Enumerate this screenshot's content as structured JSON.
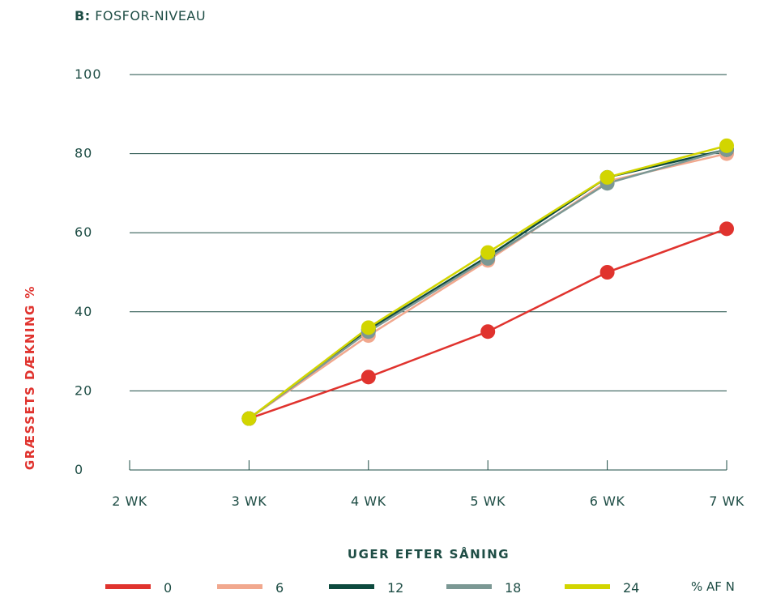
{
  "title_prefix": "B:",
  "title_text": "FOSFOR-NIVEAU",
  "legend_unit": "% AF N",
  "chart_data": {
    "type": "line",
    "x": [
      "2 WK",
      "3 WK",
      "4 WK",
      "5 WK",
      "6 WK",
      "7 WK"
    ],
    "xlabel": "UGER EFTER SÅNING",
    "ylabel": "GRÆSSETS DÆKNING %",
    "ylim": [
      0,
      100
    ],
    "yticks": [
      0,
      20,
      40,
      60,
      80,
      100
    ],
    "grid": true,
    "legend_position": "bottom",
    "series": [
      {
        "name": "0",
        "color": "#e0332e",
        "values": [
          null,
          13,
          23.5,
          35,
          50,
          61
        ]
      },
      {
        "name": "6",
        "color": "#f1a88e",
        "values": [
          null,
          13,
          34,
          53,
          73,
          80
        ]
      },
      {
        "name": "12",
        "color": "#0d4a3e",
        "values": [
          null,
          13,
          35.5,
          54,
          74,
          81
        ]
      },
      {
        "name": "18",
        "color": "#7b9894",
        "values": [
          null,
          13,
          35,
          53.5,
          72.5,
          81
        ]
      },
      {
        "name": "24",
        "color": "#d2d500",
        "values": [
          null,
          13,
          36,
          55,
          74,
          82
        ]
      }
    ]
  }
}
